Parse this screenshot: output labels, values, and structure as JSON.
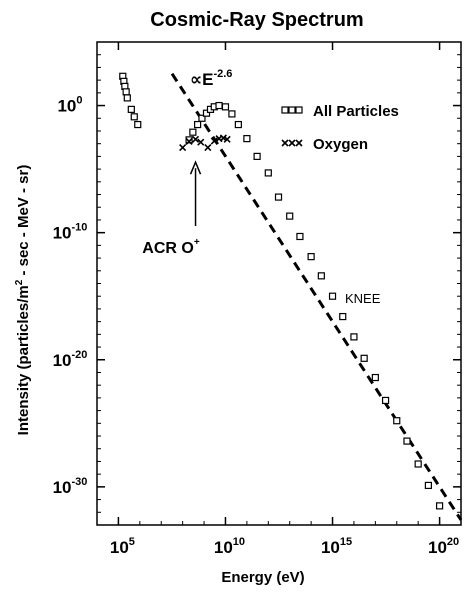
{
  "chart_data": {
    "type": "scatter",
    "title": "Cosmic-Ray Spectrum",
    "xlabel": "Energy (eV)",
    "ylabel_parts": [
      "Intensity (particles/m",
      "2",
      " - sec - MeV - sr)"
    ],
    "x_scale": "log",
    "y_scale": "log",
    "xlim": [
      10000,
      1e+21
    ],
    "ylim": [
      1e-33,
      100000.0
    ],
    "grid": false,
    "legend_position": "top-right",
    "x_ticks": [
      {
        "value": 100000.0,
        "base": "10",
        "exp": "5"
      },
      {
        "value": 10000000000.0,
        "base": "10",
        "exp": "10"
      },
      {
        "value": 1000000000000000.0,
        "base": "10",
        "exp": "15"
      },
      {
        "value": 1e+20,
        "base": "10",
        "exp": "20"
      }
    ],
    "y_ticks": [
      {
        "value": 1,
        "base": "10",
        "exp": "0"
      },
      {
        "value": 1e-10,
        "base": "10",
        "exp": "-10"
      },
      {
        "value": 1e-20,
        "base": "10",
        "exp": "-20"
      },
      {
        "value": 1e-30,
        "base": "10",
        "exp": "-30"
      }
    ],
    "series": [
      {
        "name": "All Particles",
        "marker": "square",
        "points": [
          [
            160000.0,
            200.0
          ],
          [
            180000.0,
            80.0
          ],
          [
            200000.0,
            32.0
          ],
          [
            230000.0,
            12.0
          ],
          [
            260000.0,
            4
          ],
          [
            400000.0,
            0.5
          ],
          [
            550000.0,
            0.13
          ],
          [
            800000.0,
            0.032
          ],
          [
            200000000.0,
            0.002
          ],
          [
            300000000.0,
            0.008
          ],
          [
            500000000.0,
            0.032
          ],
          [
            800000000.0,
            0.1
          ],
          [
            1300000000.0,
            0.25
          ],
          [
            2000000000.0,
            0.5
          ],
          [
            3000000000.0,
            0.8
          ],
          [
            5000000000.0,
            1.0
          ],
          [
            10000000000.0,
            0.79
          ],
          [
            20000000000.0,
            0.22
          ],
          [
            40000000000.0,
            0.032
          ],
          [
            100000000000.0,
            0.0025
          ],
          [
            300000000000.0,
            0.0001
          ],
          [
            1000000000000.0,
            5e-06
          ],
          [
            3000000000000.0,
            6.3e-08
          ],
          [
            10000000000000.0,
            2e-09
          ],
          [
            30000000000000.0,
            5e-11
          ],
          [
            100000000000000.0,
            1.3e-12
          ],
          [
            300000000000000.0,
            4e-14
          ],
          [
            1000000000000000.0,
            1e-15
          ],
          [
            3000000000000000.0,
            2.5e-17
          ],
          [
            1e+16,
            6.3e-19
          ],
          [
            3e+16,
            1.3e-20
          ],
          [
            1e+17,
            4e-22
          ],
          [
            3e+17,
            6.3e-24
          ],
          [
            1e+18,
            1.6e-25
          ],
          [
            3e+18,
            4e-27
          ],
          [
            1e+19,
            6.3e-29
          ],
          [
            3e+19,
            1.3e-30
          ],
          [
            1e+20,
            3.2e-32
          ]
        ]
      },
      {
        "name": "Oxygen",
        "marker": "x",
        "points": [
          [
            100000000.0,
            0.0005
          ],
          [
            200000000.0,
            0.0015
          ],
          [
            400000000.0,
            0.0022
          ],
          [
            700000000.0,
            0.0013
          ],
          [
            1500000000.0,
            0.0005
          ],
          [
            3000000000.0,
            0.0016
          ],
          [
            5000000000.0,
            0.0025
          ],
          [
            8000000000.0,
            0.0028
          ],
          [
            12000000000.0,
            0.0022
          ]
        ]
      }
    ],
    "fit_line": {
      "label_base": "∝E",
      "label_exp": "-2.6",
      "points": [
        [
          32000000.0,
          320.0
        ],
        [
          1e+21,
          2.5e-33
        ]
      ],
      "style": "dashed"
    },
    "annotations": [
      {
        "text": "KNEE",
        "at": [
          800000000000000.0,
          5e-16
        ]
      },
      {
        "text_base": "ACR O",
        "text_sup": "+",
        "arrow_to": [
          400000000.0,
          5e-05
        ],
        "text_at": [
          300000000.0,
          1e-12
        ]
      }
    ]
  }
}
